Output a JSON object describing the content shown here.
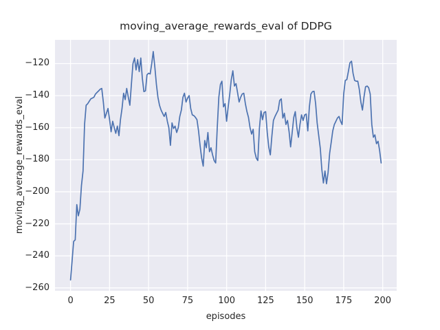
{
  "chart_data": {
    "type": "line",
    "title": "moving_average_rewards_eval of DDPG",
    "xlabel": "episodes",
    "ylabel": "moving_average_rewards_eval",
    "grid": true,
    "legend": "none",
    "bg_color": "#eaeaf2",
    "grid_color": "#ffffff",
    "line_color": "#4c72b0",
    "text_color": "#262626",
    "xlim": [
      -9.95,
      208.95
    ],
    "ylim": [
      -261.8,
      -105.2
    ],
    "x_ticks": [
      0,
      25,
      50,
      75,
      100,
      125,
      150,
      175,
      200
    ],
    "x_tick_labels": [
      "0",
      "25",
      "50",
      "75",
      "100",
      "125",
      "150",
      "175",
      "200"
    ],
    "y_ticks": [
      -120,
      -140,
      -160,
      -180,
      -200,
      -220,
      -240,
      -260
    ],
    "y_tick_labels": [
      "−120",
      "−140",
      "−160",
      "−180",
      "−200",
      "−220",
      "−240",
      "−260"
    ],
    "series": [
      {
        "name": "moving_average_rewards_eval",
        "x_start": 0,
        "x_step": 1,
        "y": [
          -255,
          -243,
          -231,
          -230,
          -208,
          -215,
          -211,
          -196,
          -187,
          -158,
          -146,
          -145,
          -143.5,
          -142,
          -141.5,
          -141,
          -139,
          -138,
          -137,
          -136,
          -135.5,
          -144,
          -154,
          -151,
          -148,
          -155,
          -162.5,
          -156,
          -160,
          -163.5,
          -159,
          -165,
          -155,
          -148,
          -138.5,
          -142.5,
          -135.5,
          -141,
          -146,
          -133,
          -120,
          -116.5,
          -124,
          -117.5,
          -125,
          -116.5,
          -129,
          -137.5,
          -137,
          -127,
          -126,
          -126.5,
          -120,
          -112.5,
          -122,
          -133,
          -141,
          -146,
          -149,
          -151,
          -153,
          -150.5,
          -156,
          -160,
          -171,
          -157,
          -160.5,
          -159,
          -163,
          -160,
          -153,
          -149,
          -141,
          -138.5,
          -144,
          -141.5,
          -140,
          -148,
          -152,
          -152.5,
          -153.5,
          -155,
          -162,
          -171,
          -179,
          -184,
          -168,
          -172.5,
          -163,
          -175,
          -172.5,
          -177,
          -180.5,
          -182,
          -160,
          -141,
          -133,
          -131,
          -147,
          -145,
          -156,
          -147,
          -139,
          -130,
          -124.5,
          -134,
          -132.5,
          -138,
          -144,
          -141,
          -139,
          -138.5,
          -145,
          -150,
          -153.5,
          -160,
          -164,
          -161,
          -175,
          -179,
          -180.5,
          -160.5,
          -149.5,
          -155,
          -150.5,
          -150,
          -163,
          -172,
          -177,
          -165,
          -155.5,
          -153,
          -151,
          -149,
          -143,
          -142,
          -154,
          -151,
          -158,
          -155.5,
          -162.5,
          -172,
          -163,
          -153.5,
          -150,
          -160,
          -166,
          -158,
          -152,
          -155.5,
          -152,
          -151.5,
          -162,
          -147,
          -139,
          -137.5,
          -137.3,
          -145,
          -157,
          -165,
          -173,
          -186,
          -194.5,
          -187,
          -195,
          -188,
          -176,
          -169,
          -162,
          -158,
          -156,
          -154,
          -153,
          -156,
          -158,
          -139,
          -130.5,
          -130,
          -125,
          -119.5,
          -118.5,
          -126,
          -130.5,
          -131,
          -131,
          -136,
          -144,
          -149,
          -141,
          -134.5,
          -134,
          -135,
          -139,
          -158,
          -166,
          -164.5,
          -170,
          -168.5,
          -174,
          -182
        ]
      }
    ]
  }
}
